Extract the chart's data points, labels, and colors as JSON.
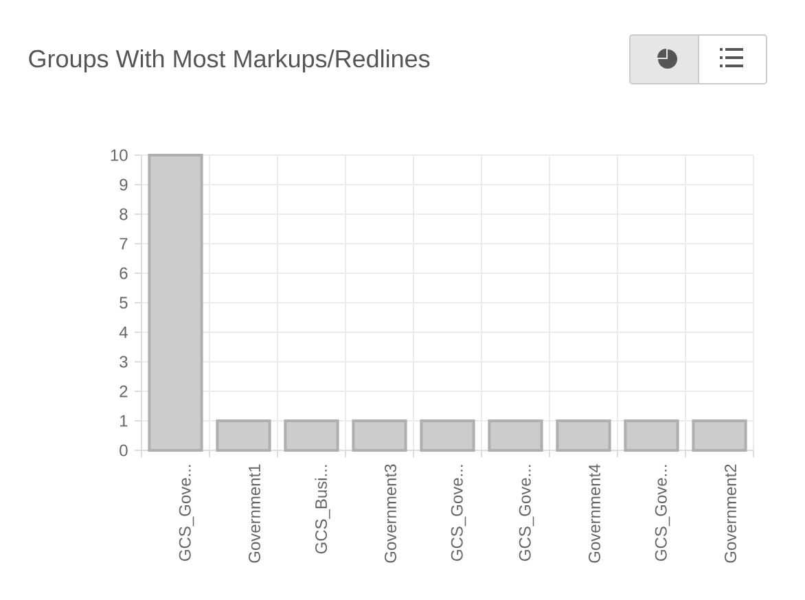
{
  "chart_data": {
    "type": "bar",
    "title": "Groups With Most Markups/Redlines",
    "categories": [
      "GCS_Gove...",
      "Government1",
      "GCS_Busi...",
      "Government3",
      "GCS_Gove...",
      "GCS_Gove...",
      "Government4",
      "GCS_Gove...",
      "Government2"
    ],
    "values": [
      10,
      1,
      1,
      1,
      1,
      1,
      1,
      1,
      1
    ],
    "color": "#cccccc",
    "ylim": [
      0,
      10
    ],
    "yticks": [
      0,
      1,
      2,
      3,
      4,
      5,
      6,
      7,
      8,
      9,
      10
    ],
    "grid": true
  }
}
